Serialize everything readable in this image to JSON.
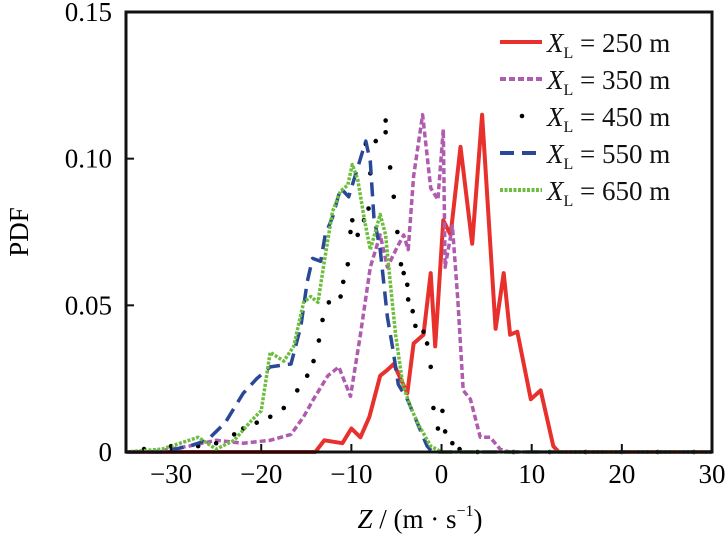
{
  "chart_data": {
    "type": "line",
    "title": "",
    "xlabel": {
      "var": "Z",
      "unit": " / (m · s",
      "exp": "−1",
      "close": ")"
    },
    "ylabel": "PDF",
    "xlim": [
      -35,
      30
    ],
    "ylim": [
      0,
      0.15
    ],
    "xticks": [
      -30,
      -20,
      -10,
      0,
      10,
      20,
      30
    ],
    "xtick_labels": [
      "−30",
      "−20",
      "−10",
      "0",
      "10",
      "20",
      "30"
    ],
    "yticks": [
      0,
      0.05,
      0.1,
      0.15
    ],
    "ytick_labels": [
      "0",
      "0.05",
      "0.10",
      "0.15"
    ],
    "grid": false,
    "legend_position": "top-right",
    "series": [
      {
        "name": "X_L = 250 m",
        "color": "#e8302c",
        "style": "solid",
        "x": [
          -35,
          -14,
          -13,
          -11,
          -10,
          -9,
          -8,
          -6.8,
          -6,
          -5.3,
          -3.8,
          -3.1,
          -2,
          -1.2,
          -0.7,
          0.2,
          1.0,
          2.1,
          3.4,
          4.5,
          6,
          6.9,
          7.6,
          8.4,
          9.9,
          11,
          12.4,
          13,
          30
        ],
        "y": [
          0,
          0,
          0.004,
          0.003,
          0.008,
          0.005,
          0.012,
          0.026,
          0.028,
          0.03,
          0.02,
          0.037,
          0.04,
          0.061,
          0.036,
          0.079,
          0.074,
          0.104,
          0.071,
          0.115,
          0.042,
          0.061,
          0.04,
          0.041,
          0.018,
          0.021,
          0.002,
          0,
          0
        ]
      },
      {
        "name": "X_L = 350 m",
        "color": "#b05cae",
        "style": "dash-short",
        "x": [
          -35,
          -32,
          -28,
          -25,
          -22,
          -19,
          -16.7,
          -15.3,
          -14.2,
          -12.6,
          -11.4,
          -10.1,
          -9,
          -7.9,
          -6.8,
          -6,
          -4.9,
          -4.2,
          -3.7,
          -3.1,
          -2.1,
          -1.2,
          -0.4,
          0.2,
          0.4,
          1.2,
          1.8,
          2.4,
          3.2,
          4.3,
          5.4,
          6.5,
          7.5,
          30
        ],
        "y": [
          0,
          0,
          0.002,
          0.004,
          0.003,
          0.004,
          0.006,
          0.012,
          0.018,
          0.026,
          0.029,
          0.019,
          0.04,
          0.063,
          0.074,
          0.063,
          0.07,
          0.074,
          0.069,
          0.094,
          0.115,
          0.09,
          0.086,
          0.11,
          0.063,
          0.077,
          0.052,
          0.021,
          0.018,
          0.005,
          0.005,
          0.001,
          0,
          0
        ]
      },
      {
        "name": "X_L = 450 m",
        "color": "#000000",
        "style": "dots",
        "x": [
          -33,
          -30,
          -27,
          -25,
          -23,
          -22,
          -20.5,
          -19,
          -17.5,
          -16,
          -14.9,
          -14.2,
          -13.6,
          -13.2,
          -12.5,
          -11.2,
          -10.9,
          -10.4,
          -10.1,
          -9.9,
          -9.3,
          -8.6,
          -8.1,
          -7.9,
          -8.4,
          -7.3,
          -6.2,
          -6.2,
          -5.7,
          -5.3,
          -4.9,
          -4.5,
          -4.2,
          -3.8,
          -3.7,
          -3.2,
          -2.9,
          -2,
          -1.6,
          -1.2,
          -0.9,
          0.1,
          -0.4,
          0.4,
          1.2,
          2,
          4,
          8,
          12,
          16,
          20,
          24,
          28
        ],
        "y": [
          0.001,
          0.002,
          0.002,
          0.003,
          0.006,
          0.008,
          0.01,
          0.012,
          0.015,
          0.021,
          0.026,
          0.031,
          0.038,
          0.045,
          0.051,
          0.053,
          0.058,
          0.064,
          0.075,
          0.079,
          0.074,
          0.079,
          0.083,
          0.095,
          0.105,
          0.106,
          0.109,
          0.113,
          0.097,
          0.087,
          0.075,
          0.064,
          0.061,
          0.057,
          0.052,
          0.048,
          0.043,
          0.041,
          0.037,
          0.029,
          0.015,
          0.014,
          0.008,
          0.007,
          0.003,
          0.001,
          0,
          0,
          0,
          0,
          0,
          0,
          0
        ]
      },
      {
        "name": "X_L = 550 m",
        "color": "#2b4898",
        "style": "dash-long",
        "x": [
          -35,
          -31,
          -28,
          -26,
          -24,
          -22,
          -20.5,
          -19,
          -16.7,
          -15.6,
          -14.9,
          -14.3,
          -13.4,
          -12.9,
          -12.1,
          -11.2,
          -10.3,
          -9.3,
          -8.4,
          -7.9,
          -7.5,
          -6.8,
          -6,
          -5.4,
          -4.8,
          -3.8,
          -2.7,
          -1.6,
          -1,
          30
        ],
        "y": [
          0,
          0,
          0.002,
          0.004,
          0.01,
          0.02,
          0.025,
          0.029,
          0.03,
          0.043,
          0.058,
          0.066,
          0.065,
          0.074,
          0.08,
          0.09,
          0.087,
          0.097,
          0.106,
          0.099,
          0.08,
          0.069,
          0.046,
          0.035,
          0.023,
          0.018,
          0.01,
          0.002,
          0,
          0
        ]
      },
      {
        "name": "X_L = 650 m",
        "color": "#6dbd3e",
        "style": "dotted",
        "x": [
          -35,
          -31,
          -29,
          -28,
          -27,
          -25,
          -23,
          -21,
          -20,
          -19,
          -17.5,
          -16.4,
          -15.3,
          -14.5,
          -13.7,
          -13.1,
          -12.1,
          -11.2,
          -10.4,
          -9.9,
          -9.3,
          -8.6,
          -7.9,
          -6.8,
          -6.2,
          -5.7,
          -5.1,
          -4.3,
          -3.4,
          -2.5,
          -1.2,
          0,
          30
        ],
        "y": [
          0,
          0.001,
          0.003,
          0.004,
          0.005,
          0.001,
          0.004,
          0.011,
          0.014,
          0.034,
          0.031,
          0.036,
          0.051,
          0.053,
          0.051,
          0.063,
          0.082,
          0.089,
          0.091,
          0.098,
          0.093,
          0.08,
          0.069,
          0.081,
          0.074,
          0.058,
          0.04,
          0.023,
          0.015,
          0.009,
          0.002,
          0,
          0
        ]
      }
    ]
  }
}
